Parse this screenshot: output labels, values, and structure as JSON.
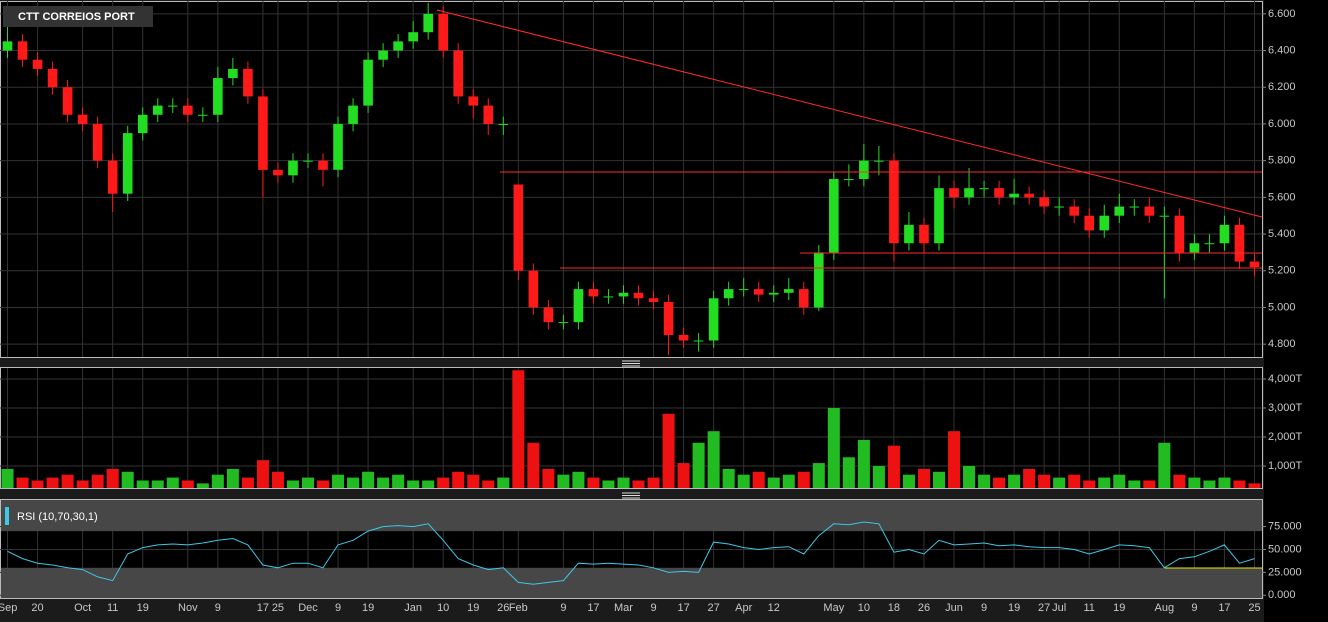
{
  "chart_data": [
    {
      "type": "candlestick",
      "title": "CTT CORREIOS PORT",
      "categories": [
        "Sep",
        null,
        "20",
        null,
        null,
        "Oct",
        null,
        "11",
        null,
        "19",
        null,
        null,
        "Nov",
        null,
        "9",
        null,
        null,
        "17",
        "25",
        null,
        "Dec",
        null,
        "9",
        null,
        "19",
        null,
        null,
        "Jan",
        null,
        "10",
        null,
        "19",
        null,
        "26",
        "Feb",
        null,
        null,
        "9",
        null,
        "17",
        null,
        "Mar",
        null,
        "9",
        null,
        "17",
        null,
        "27",
        null,
        "Apr",
        null,
        "12",
        null,
        null,
        null,
        "May",
        null,
        "10",
        null,
        "18",
        null,
        "26",
        null,
        "Jun",
        null,
        "9",
        null,
        "19",
        null,
        "27",
        "Jul",
        null,
        "11",
        null,
        "19",
        null,
        null,
        "Aug",
        null,
        "9",
        null,
        "17",
        null,
        "25"
      ],
      "open": [
        6.4,
        6.45,
        6.35,
        6.3,
        6.2,
        6.05,
        6.0,
        5.8,
        5.62,
        5.95,
        6.05,
        6.1,
        6.1,
        6.05,
        6.05,
        6.25,
        6.3,
        6.15,
        5.75,
        5.72,
        5.8,
        5.8,
        5.75,
        6.0,
        6.1,
        6.35,
        6.4,
        6.45,
        6.5,
        6.6,
        6.4,
        6.15,
        6.1,
        6.0,
        5.67,
        5.2,
        5.0,
        4.92,
        4.92,
        5.1,
        5.06,
        5.06,
        5.08,
        5.05,
        5.03,
        4.85,
        4.82,
        4.82,
        5.05,
        5.1,
        5.1,
        5.07,
        5.08,
        5.1,
        5.0,
        5.3,
        5.7,
        5.7,
        5.8,
        5.8,
        5.35,
        5.45,
        5.35,
        5.65,
        5.6,
        5.65,
        5.65,
        5.6,
        5.62,
        5.6,
        5.55,
        5.55,
        5.5,
        5.42,
        5.5,
        5.55,
        5.55,
        5.5,
        5.5,
        5.3,
        5.35,
        5.35,
        5.45,
        5.25
      ],
      "high": [
        6.63,
        6.49,
        6.39,
        6.34,
        6.24,
        6.09,
        6.04,
        5.84,
        5.99,
        6.09,
        6.14,
        6.14,
        6.14,
        6.09,
        6.31,
        6.36,
        6.34,
        6.19,
        5.79,
        5.84,
        5.84,
        5.84,
        6.04,
        6.14,
        6.39,
        6.44,
        6.49,
        6.56,
        6.66,
        6.64,
        6.44,
        6.19,
        6.14,
        6.04,
        5.67,
        5.24,
        5.04,
        4.96,
        5.14,
        5.14,
        5.1,
        5.12,
        5.12,
        5.09,
        5.07,
        4.89,
        4.86,
        5.09,
        5.14,
        5.16,
        5.14,
        5.12,
        5.16,
        5.14,
        5.34,
        5.74,
        5.78,
        5.89,
        5.88,
        5.84,
        5.52,
        5.49,
        5.72,
        5.69,
        5.76,
        5.69,
        5.69,
        5.7,
        5.66,
        5.64,
        5.6,
        5.59,
        5.54,
        5.56,
        5.62,
        5.59,
        5.6,
        5.55,
        5.54,
        5.4,
        5.4,
        5.5,
        5.49,
        5.29
      ],
      "low": [
        6.36,
        6.31,
        6.26,
        6.16,
        6.01,
        5.96,
        5.76,
        5.52,
        5.58,
        5.91,
        6.01,
        6.06,
        6.01,
        6.01,
        6.01,
        6.21,
        6.11,
        5.6,
        5.68,
        5.68,
        5.76,
        5.66,
        5.71,
        5.96,
        6.06,
        6.31,
        6.36,
        6.41,
        6.46,
        6.36,
        6.11,
        6.03,
        5.94,
        5.94,
        5.15,
        4.96,
        4.88,
        4.88,
        4.88,
        5.02,
        5.02,
        5.02,
        5.01,
        4.99,
        4.74,
        4.78,
        4.76,
        4.78,
        5.01,
        5.06,
        5.03,
        5.03,
        5.04,
        4.96,
        4.98,
        5.26,
        5.66,
        5.66,
        5.72,
        5.25,
        5.31,
        5.3,
        5.31,
        5.54,
        5.56,
        5.6,
        5.56,
        5.56,
        5.56,
        5.51,
        5.5,
        5.46,
        5.38,
        5.38,
        5.46,
        5.5,
        5.46,
        5.05,
        5.25,
        5.26,
        5.3,
        5.31,
        5.21,
        5.17
      ],
      "close": [
        6.45,
        6.35,
        6.3,
        6.2,
        6.05,
        6.0,
        5.8,
        5.62,
        5.95,
        6.05,
        6.1,
        6.1,
        6.05,
        6.05,
        6.25,
        6.3,
        6.15,
        5.75,
        5.72,
        5.8,
        5.8,
        5.75,
        6.0,
        6.1,
        6.35,
        6.4,
        6.45,
        6.5,
        6.6,
        6.4,
        6.15,
        6.1,
        6.0,
        6.0,
        5.2,
        5.0,
        4.92,
        4.92,
        5.1,
        5.06,
        5.06,
        5.08,
        5.05,
        5.03,
        4.85,
        4.82,
        4.82,
        5.05,
        5.1,
        5.1,
        5.07,
        5.08,
        5.1,
        5.0,
        5.3,
        5.7,
        5.7,
        5.8,
        5.8,
        5.35,
        5.45,
        5.35,
        5.65,
        5.6,
        5.65,
        5.65,
        5.6,
        5.62,
        5.6,
        5.55,
        5.55,
        5.5,
        5.42,
        5.5,
        5.55,
        5.55,
        5.5,
        5.5,
        5.3,
        5.35,
        5.35,
        5.45,
        5.25,
        5.22
      ],
      "up_color": "#22dd22",
      "down_color": "#ff1a1a",
      "ylim": [
        4.73,
        6.67
      ],
      "yticks": [
        {
          "value": 4.8,
          "label": "4.800"
        },
        {
          "value": 5.0,
          "label": "5.000"
        },
        {
          "value": 5.2,
          "label": "5.200"
        },
        {
          "value": 5.4,
          "label": "5.400"
        },
        {
          "value": 5.6,
          "label": "5.600"
        },
        {
          "value": 5.8,
          "label": "5.800"
        },
        {
          "value": 6.0,
          "label": "6.000"
        },
        {
          "value": 6.2,
          "label": "6.200"
        },
        {
          "value": 6.4,
          "label": "6.400"
        },
        {
          "value": 6.6,
          "label": "6.600"
        }
      ],
      "grid": true
    },
    {
      "type": "bar",
      "values": [
        900,
        600,
        500,
        600,
        700,
        500,
        700,
        900,
        800,
        500,
        500,
        600,
        500,
        400,
        700,
        900,
        600,
        1200,
        800,
        500,
        600,
        500,
        700,
        600,
        800,
        600,
        700,
        500,
        500,
        600,
        800,
        700,
        500,
        600,
        4300,
        1800,
        900,
        700,
        800,
        600,
        500,
        600,
        500,
        600,
        2800,
        1100,
        1800,
        2200,
        900,
        700,
        800,
        600,
        700,
        800,
        1100,
        3000,
        1300,
        1900,
        1000,
        1700,
        700,
        900,
        800,
        2200,
        1000,
        700,
        600,
        700,
        900,
        700,
        600,
        700,
        500,
        600,
        700,
        500,
        500,
        1800,
        700,
        600,
        500,
        600,
        500,
        400
      ],
      "up_color": "#22bb22",
      "down_color": "#ee1111",
      "ylim": [
        241,
        4379
      ],
      "yticks": [
        {
          "value": 1000,
          "label": "1,000T"
        },
        {
          "value": 2000,
          "label": "2,000T"
        },
        {
          "value": 3000,
          "label": "3,000T"
        },
        {
          "value": 4000,
          "label": "4,000T"
        }
      ],
      "grid": true
    },
    {
      "type": "line",
      "title": "RSI (10,70,30,1)",
      "values": [
        48,
        40,
        35,
        33,
        30,
        28,
        20,
        16,
        45,
        52,
        55,
        56,
        55,
        57,
        60,
        62,
        55,
        33,
        30,
        35,
        35,
        30,
        55,
        60,
        70,
        75,
        76,
        75,
        78,
        60,
        40,
        33,
        28,
        30,
        14,
        12,
        14,
        16,
        35,
        34,
        35,
        34,
        33,
        30,
        25,
        26,
        25,
        58,
        56,
        52,
        50,
        52,
        53,
        45,
        65,
        78,
        77,
        80,
        78,
        47,
        50,
        45,
        60,
        55,
        56,
        57,
        54,
        55,
        53,
        52,
        52,
        50,
        45,
        50,
        55,
        54,
        52,
        30,
        40,
        42,
        48,
        55,
        35,
        40
      ],
      "color": "#3cc8e8",
      "bands": [
        70,
        30
      ],
      "ylim": [
        -3,
        104
      ],
      "yticks": [
        {
          "value": 0,
          "label": "0.000"
        },
        {
          "value": 25,
          "label": "25.000"
        },
        {
          "value": 50,
          "label": "50.000"
        },
        {
          "value": 75,
          "label": "75.000"
        }
      ],
      "grid": true
    }
  ]
}
